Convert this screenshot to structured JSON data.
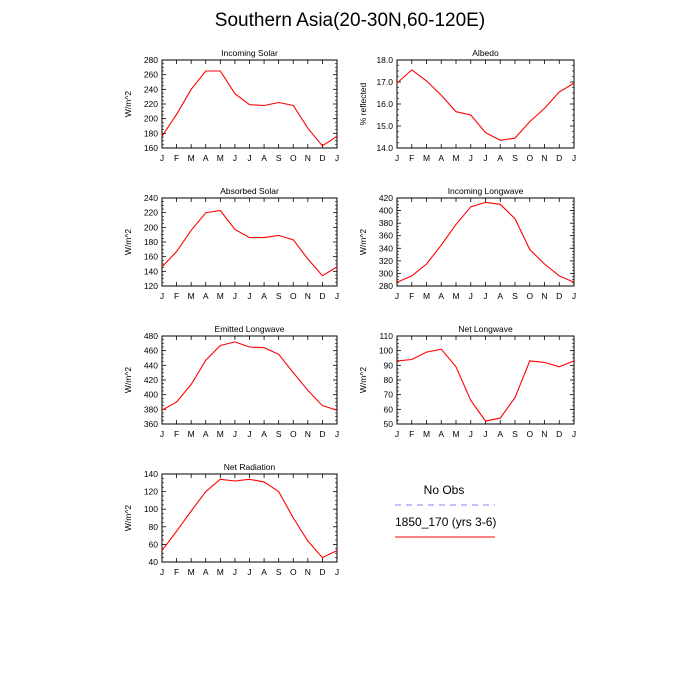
{
  "page": {
    "title": "Southern Asia(20-30N,60-120E)"
  },
  "months": [
    "J",
    "F",
    "M",
    "A",
    "M",
    "J",
    "J",
    "A",
    "S",
    "O",
    "N",
    "D",
    "J"
  ],
  "legend": {
    "entries": [
      {
        "name": "No Obs",
        "color": "#8080ff",
        "style": "dashed"
      },
      {
        "name": "1850_170 (yrs 3-6)",
        "color": "#ff0000",
        "style": "solid"
      }
    ]
  },
  "chart_data": [
    {
      "type": "line",
      "title": "Incoming Solar",
      "ylabel": "W/m^2",
      "ylim": [
        160,
        280
      ],
      "yticks": [
        160,
        180,
        200,
        220,
        240,
        260,
        280
      ],
      "tick_decimals": 0,
      "series": [
        {
          "color": "#ff0000",
          "values": [
            176,
            206,
            240,
            265,
            265,
            234,
            219,
            218,
            222,
            218,
            187,
            163,
            176
          ]
        }
      ]
    },
    {
      "type": "line",
      "title": "Albedo",
      "ylabel": "% reflected",
      "ylim": [
        14.0,
        18.0
      ],
      "yticks": [
        14.0,
        15.0,
        16.0,
        17.0,
        18.0
      ],
      "tick_decimals": 1,
      "series": [
        {
          "color": "#ff0000",
          "values": [
            16.95,
            17.55,
            17.05,
            16.4,
            15.65,
            15.5,
            14.7,
            14.35,
            14.45,
            15.2,
            15.8,
            16.55,
            16.95
          ]
        }
      ]
    },
    {
      "type": "line",
      "title": "Absorbed Solar",
      "ylabel": "W/m^2",
      "ylim": [
        120,
        240
      ],
      "yticks": [
        120,
        140,
        160,
        180,
        200,
        220,
        240
      ],
      "tick_decimals": 0,
      "series": [
        {
          "color": "#ff0000",
          "values": [
            146,
            167,
            196,
            220,
            223,
            197,
            186,
            186,
            189,
            183,
            157,
            134,
            146
          ]
        }
      ]
    },
    {
      "type": "line",
      "title": "Incoming Longwave",
      "ylabel": "W/m^2",
      "ylim": [
        280,
        420
      ],
      "yticks": [
        280,
        300,
        320,
        340,
        360,
        380,
        400,
        420
      ],
      "tick_decimals": 0,
      "series": [
        {
          "color": "#ff0000",
          "values": [
            286,
            296,
            315,
            345,
            378,
            406,
            413,
            410,
            387,
            338,
            315,
            296,
            286
          ]
        }
      ]
    },
    {
      "type": "line",
      "title": "Emitted Longwave",
      "ylabel": "W/m^2",
      "ylim": [
        360,
        480
      ],
      "yticks": [
        360,
        380,
        400,
        420,
        440,
        460,
        480
      ],
      "tick_decimals": 0,
      "series": [
        {
          "color": "#ff0000",
          "values": [
            379,
            390,
            414,
            447,
            467,
            472,
            465,
            464,
            455,
            430,
            406,
            385,
            379
          ]
        }
      ]
    },
    {
      "type": "line",
      "title": "Net Longwave",
      "ylabel": "W/m^2",
      "ylim": [
        50,
        110
      ],
      "yticks": [
        50,
        60,
        70,
        80,
        90,
        100,
        110
      ],
      "tick_decimals": 0,
      "series": [
        {
          "color": "#ff0000",
          "values": [
            93,
            94,
            99,
            101,
            89,
            66,
            52,
            54,
            68,
            93,
            92,
            89,
            93
          ]
        }
      ]
    },
    {
      "type": "line",
      "title": "Net Radiation",
      "ylabel": "W/m^2",
      "ylim": [
        40,
        140
      ],
      "yticks": [
        40,
        60,
        80,
        100,
        120,
        140
      ],
      "tick_decimals": 0,
      "series": [
        {
          "color": "#ff0000",
          "values": [
            53,
            75,
            98,
            120,
            134,
            132,
            134,
            131,
            120,
            90,
            64,
            45,
            53
          ]
        }
      ]
    }
  ]
}
